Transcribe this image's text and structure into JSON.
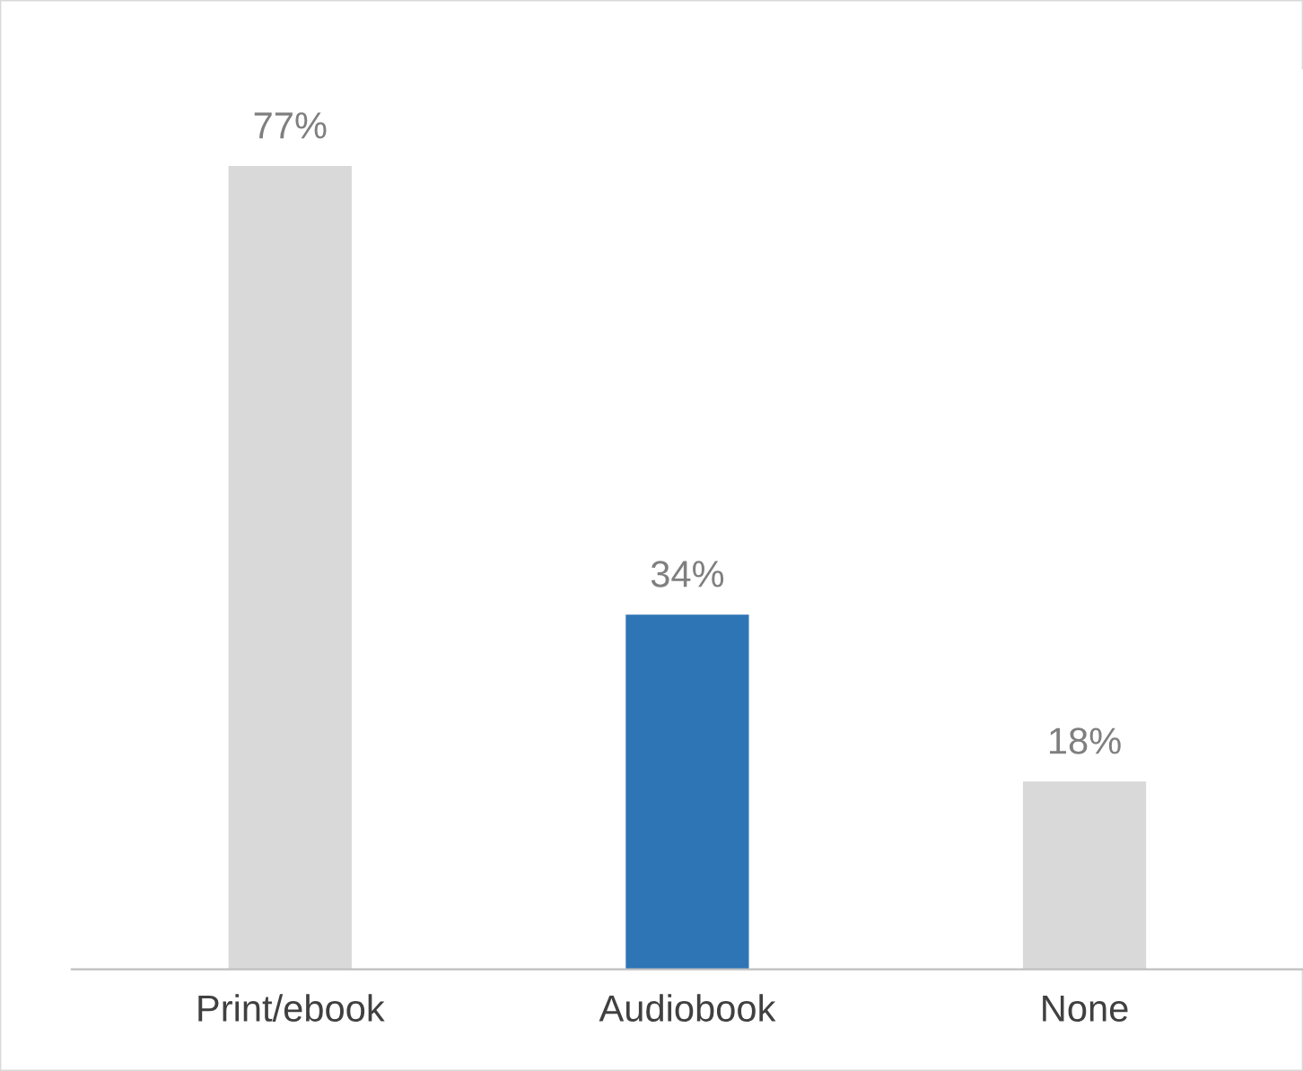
{
  "chart_data": {
    "type": "bar",
    "categories": [
      "Print/ebook",
      "Audiobook",
      "None"
    ],
    "values": [
      77,
      34,
      18
    ],
    "colors": [
      "#d9d9d9",
      "#2e75b6",
      "#d9d9d9"
    ],
    "value_labels": [
      "77%",
      "34%",
      "18%"
    ],
    "grid": false,
    "legend": false
  }
}
